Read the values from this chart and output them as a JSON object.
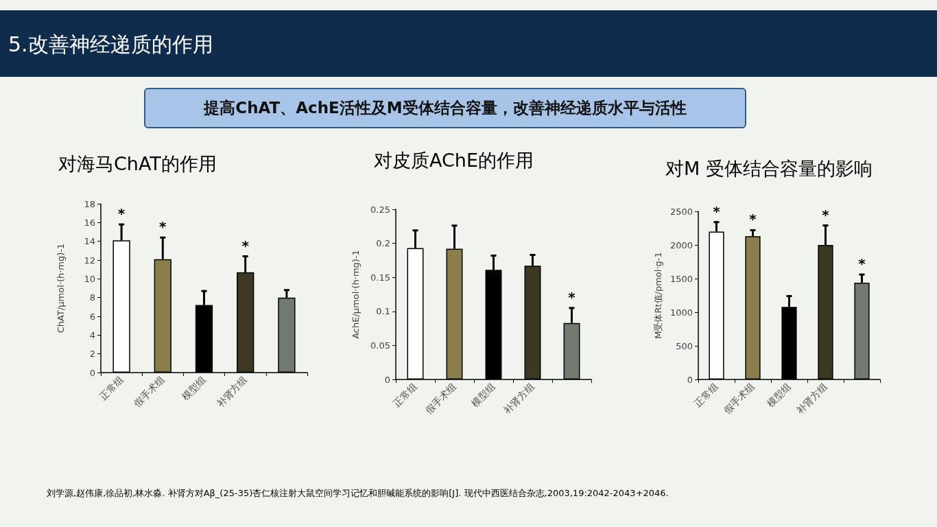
{
  "chart_data": [
    {
      "type": "bar",
      "title": "对海马ChAT的作用",
      "ylabel": "ChAT/μmol·(h·mg)-1",
      "categories": [
        "正常组",
        "假手术组",
        "模型组",
        "补肾方组",
        null
      ],
      "values": [
        14.1,
        12.1,
        7.2,
        10.7,
        8.0
      ],
      "colors": [
        "#ffffff",
        "#8b7d4a",
        "#000000",
        "#3d3820",
        "#717a6f"
      ],
      "errors": [
        [
          14.1,
          15.8
        ],
        [
          12.1,
          14.4
        ],
        [
          7.2,
          8.7
        ],
        [
          10.7,
          12.4
        ],
        [
          8.0,
          8.8
        ]
      ],
      "value_labels": [
        "*",
        "*",
        null,
        "*",
        null
      ],
      "ylim": [
        0,
        18
      ],
      "yticks": [
        0,
        2,
        4,
        6,
        8,
        10,
        12,
        14,
        16,
        18
      ],
      "grid": false
    },
    {
      "type": "bar",
      "title": "对皮质AChE的作用",
      "ylabel": "AchE/μmol·(h·mg)-1",
      "categories": [
        "正常组",
        "假手术组",
        "模型组",
        "补肾方组",
        null
      ],
      "values": [
        0.193,
        0.192,
        0.161,
        0.167,
        0.083
      ],
      "colors": [
        "#ffffff",
        "#8b7d4a",
        "#000000",
        "#3d3820",
        "#717a6f"
      ],
      "errors": [
        [
          0.193,
          0.219
        ],
        [
          0.192,
          0.226
        ],
        [
          0.161,
          0.182
        ],
        [
          0.167,
          0.183
        ],
        [
          0.083,
          0.105
        ]
      ],
      "value_labels": [
        null,
        null,
        null,
        null,
        "*"
      ],
      "ylim": [
        0,
        0.25
      ],
      "yticks": [
        0,
        0.05,
        0.1,
        0.15,
        0.2,
        0.25
      ],
      "grid": false
    },
    {
      "type": "bar",
      "title": "对M 受体结合容量的影响",
      "ylabel": "M受体Rt值/pmol·g-1",
      "categories": [
        "正常组",
        "假手术组",
        "模型组",
        "补肾方组",
        null
      ],
      "values": [
        2200,
        2130,
        1080,
        2000,
        1440
      ],
      "colors": [
        "#ffffff",
        "#8b7d4a",
        "#000000",
        "#3d3820",
        "#717a6f"
      ],
      "errors": [
        [
          2200,
          2340
        ],
        [
          2130,
          2220
        ],
        [
          1080,
          1240
        ],
        [
          2000,
          2290
        ],
        [
          1440,
          1560
        ]
      ],
      "value_labels": [
        "*",
        "*",
        null,
        "*",
        "*"
      ],
      "ylim": [
        0,
        2500
      ],
      "yticks": [
        0,
        500,
        1000,
        1500,
        2000,
        2500
      ],
      "grid": false
    },
    {
      "type": "other",
      "title": "5.改善神经递质的作用",
      "subtitle": "提高ChAT、AchE活性及M受体结合容量，改善神经递质水平与活性",
      "annotations": [
        "刘学源,赵伟康,徐品初,林水淼. 补肾方对Aβ_(25-35)杏仁核注射大鼠空间学习记忆和胆碱能系统的影响[J]. 现代中西医结合杂志,2003,19:2042-2043+2046."
      ]
    }
  ]
}
